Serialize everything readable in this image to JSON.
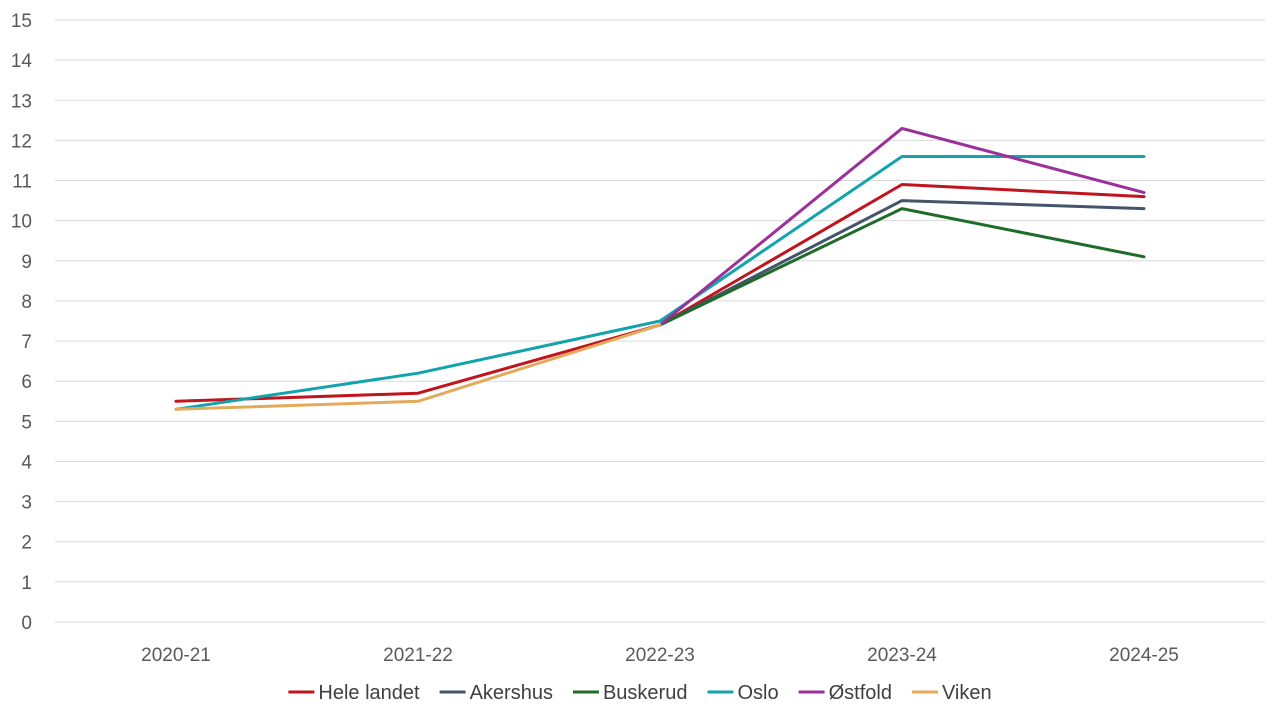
{
  "chart_data": {
    "type": "line",
    "title": "",
    "xlabel": "",
    "ylabel": "",
    "categories": [
      "2020-21",
      "2021-22",
      "2022-23",
      "2023-24",
      "2024-25"
    ],
    "ylim": [
      0,
      15
    ],
    "yticks": [
      0,
      1,
      2,
      3,
      4,
      5,
      6,
      7,
      8,
      9,
      10,
      11,
      12,
      13,
      14,
      15
    ],
    "grid": true,
    "legend_position": "bottom",
    "series": [
      {
        "name": "Hele landet",
        "color": "#c0141e",
        "values": [
          5.5,
          5.7,
          7.4,
          10.9,
          10.6
        ]
      },
      {
        "name": "Akershus",
        "color": "#44546a",
        "values": [
          null,
          null,
          7.4,
          10.5,
          10.3
        ]
      },
      {
        "name": "Buskerud",
        "color": "#1f6b2a",
        "values": [
          null,
          null,
          7.4,
          10.3,
          9.1
        ]
      },
      {
        "name": "Oslo",
        "color": "#13a3ad",
        "values": [
          5.3,
          6.2,
          7.5,
          11.6,
          11.6
        ]
      },
      {
        "name": "Østfold",
        "color": "#9c2f9a",
        "values": [
          null,
          null,
          7.4,
          12.3,
          10.7
        ]
      },
      {
        "name": "Viken",
        "color": "#e3aa5b",
        "values": [
          5.3,
          5.5,
          7.4,
          null,
          null
        ]
      }
    ]
  }
}
